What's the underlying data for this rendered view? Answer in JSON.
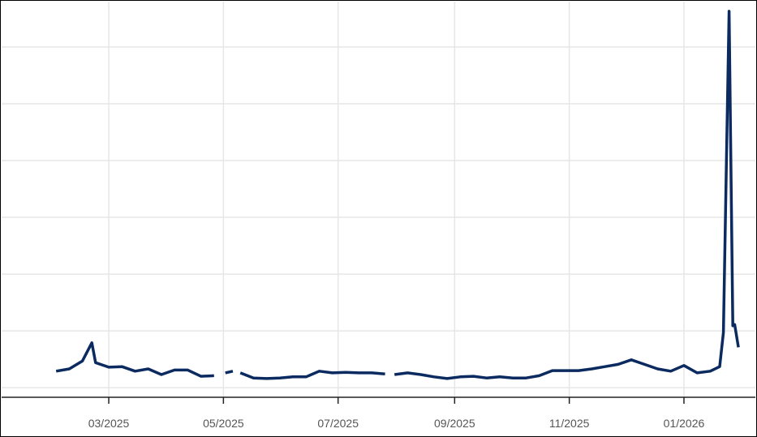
{
  "chart_data": {
    "type": "line",
    "title": "",
    "xlabel": "",
    "ylabel": "",
    "x_tick_labels": [
      "03/2025",
      "05/2025",
      "07/2025",
      "09/2025",
      "11/2025",
      "01/2026"
    ],
    "x_ticks": [
      "2025-03-01",
      "2025-05-01",
      "2025-07-01",
      "2025-09-01",
      "2025-11-01",
      "2026-01-01"
    ],
    "xlim": [
      "2025-01-03",
      "2026-02-08"
    ],
    "ylim": [
      -0.17,
      6.8
    ],
    "y_grid": [
      0,
      1,
      2,
      3,
      4,
      5,
      6
    ],
    "grid": true,
    "line_color": "#0b2a60",
    "series": [
      {
        "points": [
          [
            "2025-02-01",
            0.29
          ],
          [
            "2025-02-08",
            0.33
          ],
          [
            "2025-02-15",
            0.47
          ],
          [
            "2025-02-20",
            0.79
          ],
          [
            "2025-02-22",
            0.44
          ],
          [
            "2025-03-01",
            0.36
          ],
          [
            "2025-03-08",
            0.37
          ],
          [
            "2025-03-15",
            0.29
          ],
          [
            "2025-03-22",
            0.33
          ],
          [
            "2025-03-29",
            0.23
          ],
          [
            "2025-04-05",
            0.31
          ],
          [
            "2025-04-12",
            0.31
          ],
          [
            "2025-04-19",
            0.2
          ],
          [
            "2025-04-26",
            0.21
          ],
          [
            "2025-04-29",
            null
          ],
          [
            "2025-05-02",
            0.26
          ],
          [
            "2025-05-06",
            0.29
          ],
          [
            "2025-05-08",
            null
          ],
          [
            "2025-05-10",
            0.26
          ],
          [
            "2025-05-17",
            0.17
          ],
          [
            "2025-05-24",
            0.16
          ],
          [
            "2025-05-31",
            0.17
          ],
          [
            "2025-06-07",
            0.19
          ],
          [
            "2025-06-14",
            0.19
          ],
          [
            "2025-06-21",
            0.29
          ],
          [
            "2025-06-28",
            0.26
          ],
          [
            "2025-07-05",
            0.27
          ],
          [
            "2025-07-12",
            0.26
          ],
          [
            "2025-07-19",
            0.26
          ],
          [
            "2025-07-26",
            0.24
          ],
          [
            "2025-07-28",
            null
          ],
          [
            "2025-07-31",
            0.23
          ],
          [
            "2025-08-07",
            0.26
          ],
          [
            "2025-08-14",
            0.23
          ],
          [
            "2025-08-21",
            0.19
          ],
          [
            "2025-08-28",
            0.16
          ],
          [
            "2025-09-04",
            0.19
          ],
          [
            "2025-09-11",
            0.2
          ],
          [
            "2025-09-18",
            0.17
          ],
          [
            "2025-09-25",
            0.19
          ],
          [
            "2025-10-02",
            0.17
          ],
          [
            "2025-10-09",
            0.17
          ],
          [
            "2025-10-16",
            0.21
          ],
          [
            "2025-10-23",
            0.3
          ],
          [
            "2025-10-30",
            0.3
          ],
          [
            "2025-11-06",
            0.3
          ],
          [
            "2025-11-13",
            0.33
          ],
          [
            "2025-11-20",
            0.37
          ],
          [
            "2025-11-27",
            0.41
          ],
          [
            "2025-12-04",
            0.49
          ],
          [
            "2025-12-11",
            0.41
          ],
          [
            "2025-12-18",
            0.33
          ],
          [
            "2025-12-25",
            0.29
          ],
          [
            "2026-01-01",
            0.39
          ],
          [
            "2026-01-08",
            0.26
          ],
          [
            "2026-01-15",
            0.29
          ],
          [
            "2026-01-20",
            0.37
          ],
          [
            "2026-01-22",
            0.97
          ],
          [
            "2026-01-25",
            6.63
          ],
          [
            "2026-01-27",
            1.09
          ],
          [
            "2026-01-28",
            1.11
          ],
          [
            "2026-01-30",
            0.71
          ]
        ]
      }
    ]
  }
}
